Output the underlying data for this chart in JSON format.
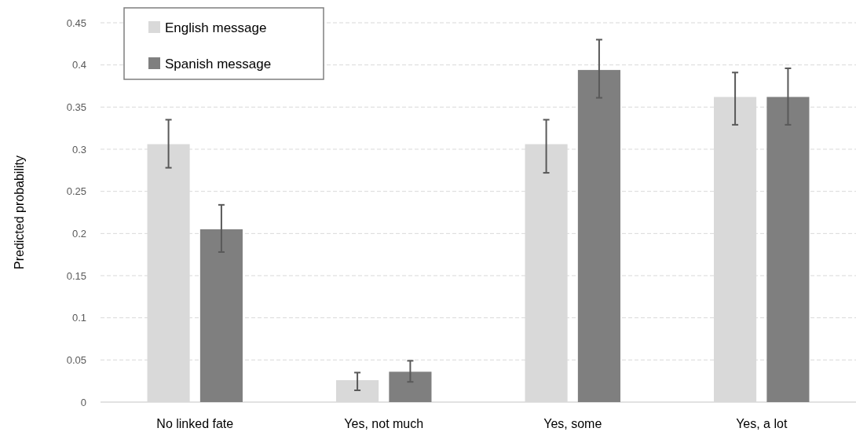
{
  "chart_data": {
    "type": "bar",
    "ylabel": "Predicted probability",
    "categories": [
      "No linked fate",
      "Yes, not much",
      "Yes, some",
      "Yes, a lot"
    ],
    "series": [
      {
        "name": "English message",
        "color": "#d9d9d9",
        "values": [
          0.306,
          0.026,
          0.306,
          0.362
        ],
        "errors": [
          [
            0.278,
            0.335
          ],
          [
            0.014,
            0.035
          ],
          [
            0.272,
            0.335
          ],
          [
            0.329,
            0.391
          ]
        ]
      },
      {
        "name": "Spanish message",
        "color": "#7f7f7f",
        "values": [
          0.205,
          0.036,
          0.394,
          0.362
        ],
        "errors": [
          [
            0.178,
            0.234
          ],
          [
            0.024,
            0.049
          ],
          [
            0.361,
            0.43
          ],
          [
            0.329,
            0.396
          ]
        ]
      }
    ],
    "ylim": [
      0,
      0.45
    ],
    "yticks": [
      0,
      0.05,
      0.1,
      0.15,
      0.2,
      0.25,
      0.3,
      0.35,
      0.4,
      0.45
    ],
    "grid": "y",
    "legend": "top left"
  }
}
